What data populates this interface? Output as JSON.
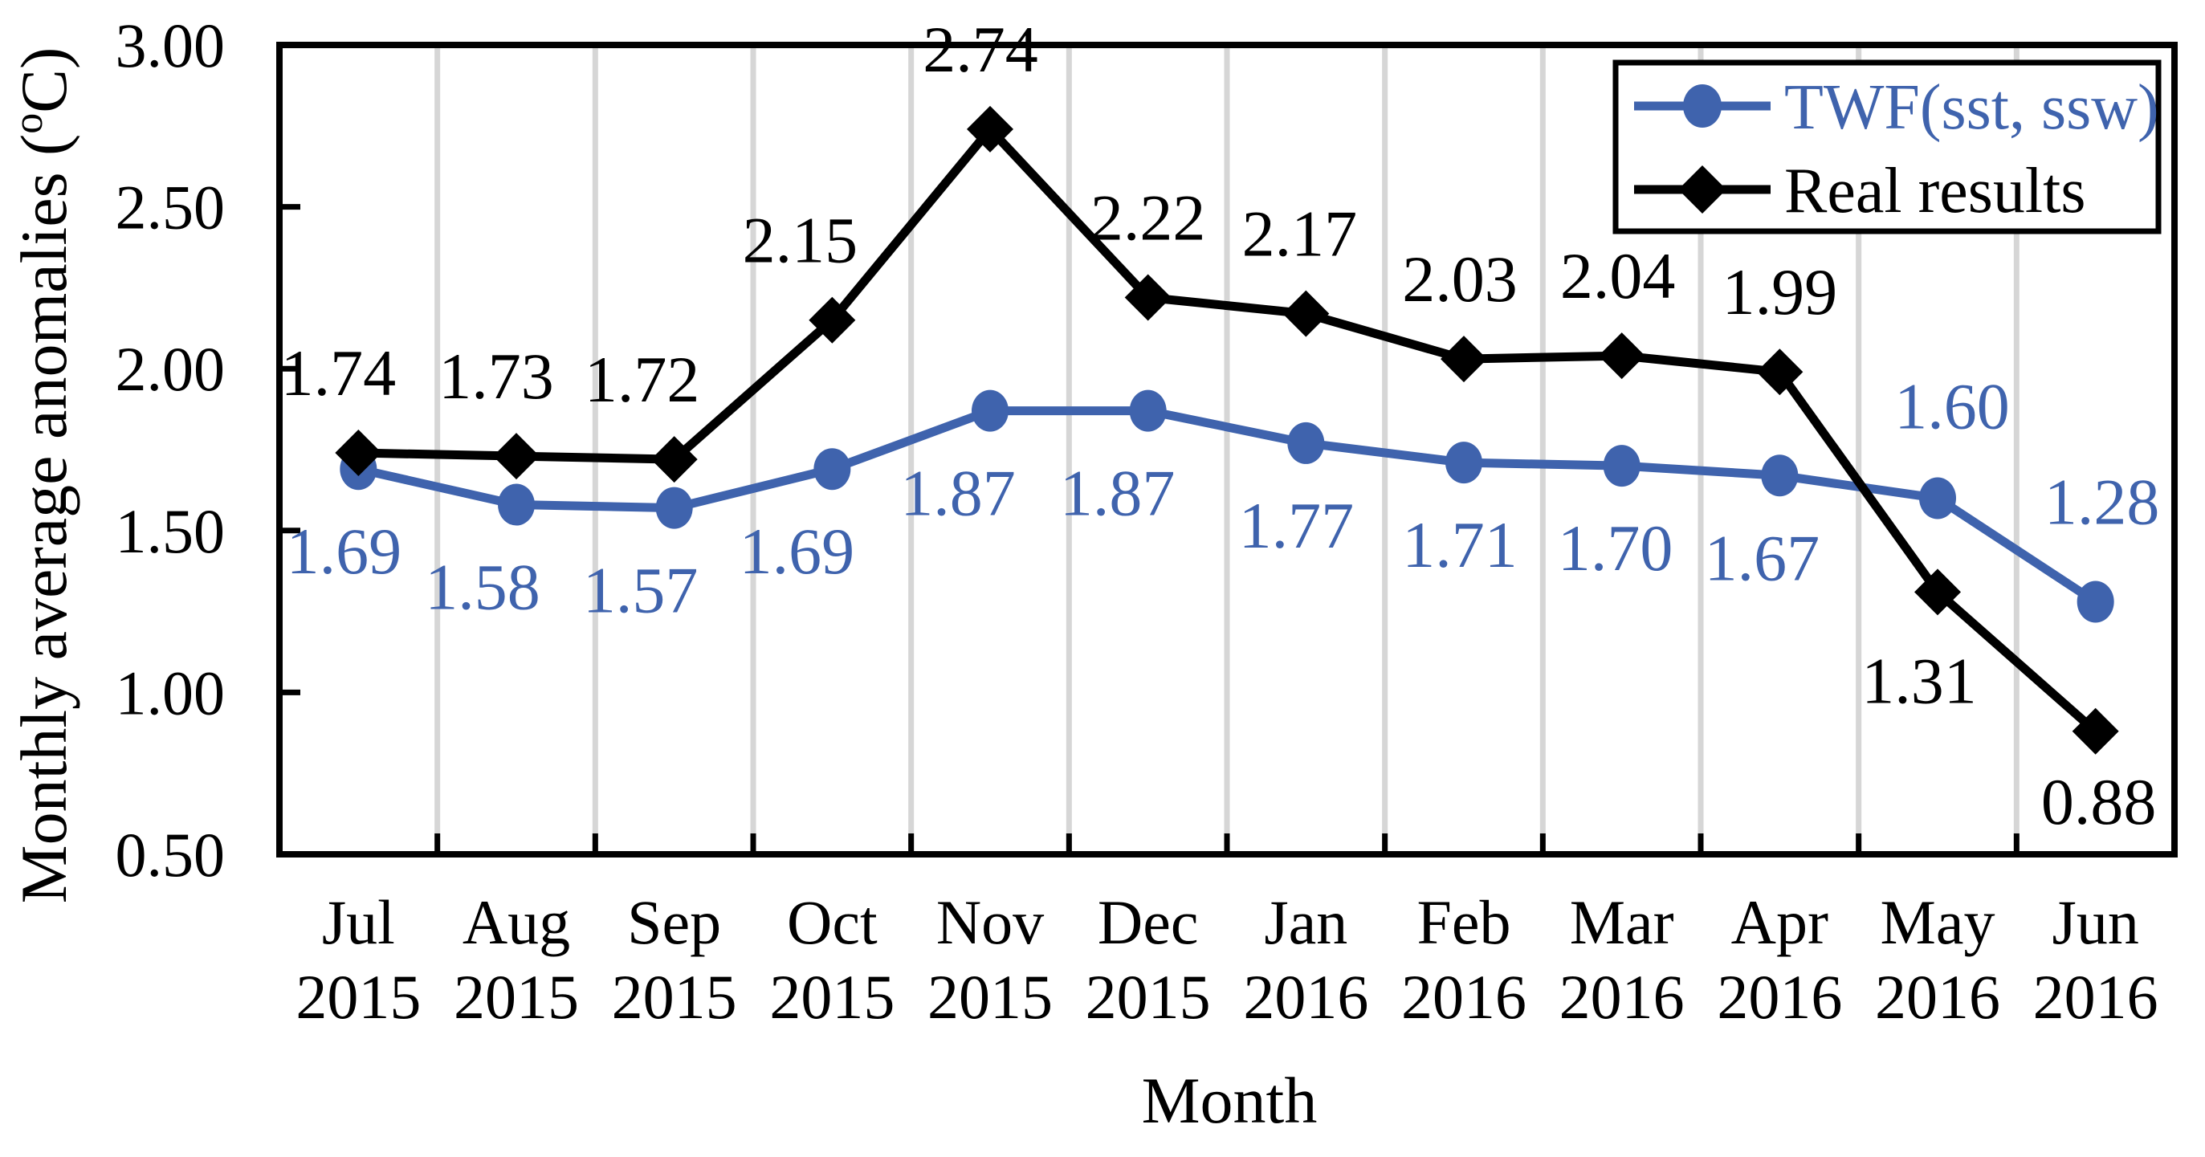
{
  "chart_data": {
    "type": "line",
    "title": "",
    "xlabel": "Month",
    "ylabel_prefix": "Monthly average anomalies (",
    "ylabel_sup": "o",
    "ylabel_suffix": "C)",
    "ylim": [
      0.5,
      3.0
    ],
    "ytick_values": [
      3.0,
      2.5,
      2.0,
      1.5,
      1.0,
      0.5
    ],
    "ytick_labels": [
      "3.00",
      "2.50",
      "2.00",
      "1.50",
      "1.00",
      "0.50"
    ],
    "grid": "vertical-only",
    "legend_position": "top-right",
    "categories": [
      {
        "month": "Jul",
        "year": "2015"
      },
      {
        "month": "Aug",
        "year": "2015"
      },
      {
        "month": "Sep",
        "year": "2015"
      },
      {
        "month": "Oct",
        "year": "2015"
      },
      {
        "month": "Nov",
        "year": "2015"
      },
      {
        "month": "Dec",
        "year": "2015"
      },
      {
        "month": "Jan",
        "year": "2016"
      },
      {
        "month": "Feb",
        "year": "2016"
      },
      {
        "month": "Mar",
        "year": "2016"
      },
      {
        "month": "Apr",
        "year": "2016"
      },
      {
        "month": "May",
        "year": "2016"
      },
      {
        "month": "Jun",
        "year": "2016"
      }
    ],
    "series": [
      {
        "name": "TWF(sst, ssw)",
        "color": "#3f63ad",
        "marker": "circle",
        "points": [
          {
            "value": 1.69,
            "label": "1.69",
            "side": "below",
            "dx": -18,
            "dy": 0
          },
          {
            "value": 1.58,
            "label": "1.58",
            "side": "below",
            "dx": -42,
            "dy": 0
          },
          {
            "value": 1.57,
            "label": "1.57",
            "side": "below",
            "dx": -42,
            "dy": 0
          },
          {
            "value": 1.69,
            "label": "1.69",
            "side": "below",
            "dx": -44,
            "dy": 0
          },
          {
            "value": 1.87,
            "label": "1.87",
            "side": "below",
            "dx": -40,
            "dy": 0
          },
          {
            "value": 1.87,
            "label": "1.87",
            "side": "below",
            "dx": -38,
            "dy": 0
          },
          {
            "value": 1.77,
            "label": "1.77",
            "side": "below",
            "dx": -12,
            "dy": 0
          },
          {
            "value": 1.71,
            "label": "1.71",
            "side": "below",
            "dx": -5,
            "dy": 0
          },
          {
            "value": 1.7,
            "label": "1.70",
            "side": "below",
            "dx": -8,
            "dy": 0
          },
          {
            "value": 1.67,
            "label": "1.67",
            "side": "below",
            "dx": -22,
            "dy": 0
          },
          {
            "value": 1.6,
            "label": "1.60",
            "side": "above",
            "dx": 18,
            "dy": -15
          },
          {
            "value": 1.28,
            "label": "1.28",
            "side": "above",
            "dx": 8,
            "dy": -25
          }
        ]
      },
      {
        "name": "Real results",
        "color": "#000000",
        "marker": "diamond",
        "points": [
          {
            "value": 1.74,
            "label": "1.74",
            "side": "above",
            "dx": -25,
            "dy": 0
          },
          {
            "value": 1.73,
            "label": "1.73",
            "side": "above",
            "dx": -25,
            "dy": 0
          },
          {
            "value": 1.72,
            "label": "1.72",
            "side": "above",
            "dx": -40,
            "dy": 0
          },
          {
            "value": 2.15,
            "label": "2.15",
            "side": "above",
            "dx": -40,
            "dy": 0
          },
          {
            "value": 2.74,
            "label": "2.74",
            "side": "above",
            "dx": -12,
            "dy": 0
          },
          {
            "value": 2.22,
            "label": "2.22",
            "side": "above",
            "dx": 0,
            "dy": 0
          },
          {
            "value": 2.17,
            "label": "2.17",
            "side": "above",
            "dx": -8,
            "dy": 0
          },
          {
            "value": 2.03,
            "label": "2.03",
            "side": "above",
            "dx": -5,
            "dy": 0
          },
          {
            "value": 2.04,
            "label": "2.04",
            "side": "above",
            "dx": -5,
            "dy": 0
          },
          {
            "value": 1.99,
            "label": "1.99",
            "side": "above",
            "dx": 0,
            "dy": 0
          },
          {
            "value": 1.31,
            "label": "1.31",
            "side": "below",
            "dx": -23,
            "dy": 8
          },
          {
            "value": 0.88,
            "label": "0.88",
            "side": "below",
            "dx": 4,
            "dy": -15
          }
        ]
      }
    ],
    "colors": {
      "accent_blue": "#3f63ad",
      "series_black": "#000000",
      "gridline": "#d6d6d6",
      "plot_border": "#000000",
      "background": "#ffffff"
    }
  }
}
